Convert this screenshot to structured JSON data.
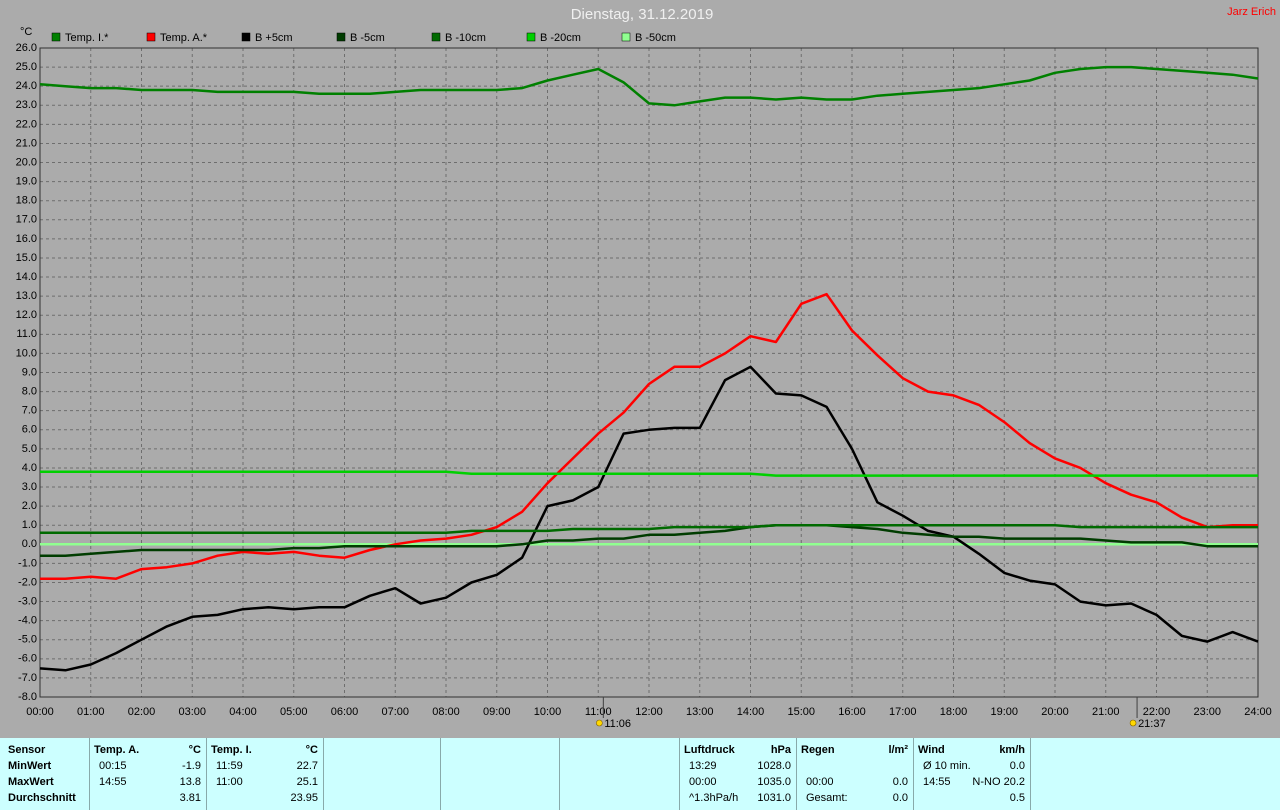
{
  "chart_data": {
    "type": "line",
    "title": "Dienstag, 31.12.2019",
    "owner": "Jarz Erich",
    "y_unit": "°C",
    "x": [
      0,
      0.5,
      1,
      1.5,
      2,
      2.5,
      3,
      3.5,
      4,
      4.5,
      5,
      5.5,
      6,
      6.5,
      7,
      7.5,
      8,
      8.5,
      9,
      9.5,
      10,
      10.5,
      11,
      11.5,
      12,
      12.5,
      13,
      13.5,
      14,
      14.5,
      15,
      15.5,
      16,
      16.5,
      17,
      17.5,
      18,
      18.5,
      19,
      19.5,
      20,
      20.5,
      21,
      21.5,
      22,
      22.5,
      23,
      23.5,
      24
    ],
    "xlim": [
      0,
      24
    ],
    "xticks": [
      {
        "value": 0,
        "label": "00:00"
      },
      {
        "value": 1,
        "label": "01:00"
      },
      {
        "value": 2,
        "label": "02:00"
      },
      {
        "value": 3,
        "label": "03:00"
      },
      {
        "value": 4,
        "label": "04:00"
      },
      {
        "value": 5,
        "label": "05:00"
      },
      {
        "value": 6,
        "label": "06:00"
      },
      {
        "value": 7,
        "label": "07:00"
      },
      {
        "value": 8,
        "label": "08:00"
      },
      {
        "value": 9,
        "label": "09:00"
      },
      {
        "value": 10,
        "label": "10:00"
      },
      {
        "value": 11,
        "label": "11:00"
      },
      {
        "value": 12,
        "label": "12:00"
      },
      {
        "value": 13,
        "label": "13:00"
      },
      {
        "value": 14,
        "label": "14:00"
      },
      {
        "value": 15,
        "label": "15:00"
      },
      {
        "value": 16,
        "label": "16:00"
      },
      {
        "value": 17,
        "label": "17:00"
      },
      {
        "value": 18,
        "label": "18:00"
      },
      {
        "value": 19,
        "label": "19:00"
      },
      {
        "value": 20,
        "label": "20:00"
      },
      {
        "value": 21,
        "label": "21:00"
      },
      {
        "value": 22,
        "label": "22:00"
      },
      {
        "value": 23,
        "label": "23:00"
      },
      {
        "value": 24,
        "label": "24:00"
      }
    ],
    "ylim": [
      -8,
      26
    ],
    "yticks": [
      {
        "value": 26,
        "label": "26.0"
      },
      {
        "value": 25,
        "label": "25.0"
      },
      {
        "value": 24,
        "label": "24.0"
      },
      {
        "value": 23,
        "label": "23.0"
      },
      {
        "value": 22,
        "label": "22.0"
      },
      {
        "value": 21,
        "label": "21.0"
      },
      {
        "value": 20,
        "label": "20.0"
      },
      {
        "value": 19,
        "label": "19.0"
      },
      {
        "value": 18,
        "label": "18.0"
      },
      {
        "value": 17,
        "label": "17.0"
      },
      {
        "value": 16,
        "label": "16.0"
      },
      {
        "value": 15,
        "label": "15.0"
      },
      {
        "value": 14,
        "label": "14.0"
      },
      {
        "value": 13,
        "label": "13.0"
      },
      {
        "value": 12,
        "label": "12.0"
      },
      {
        "value": 11,
        "label": "11.0"
      },
      {
        "value": 10,
        "label": "10.0"
      },
      {
        "value": 9,
        "label": "9.0"
      },
      {
        "value": 8,
        "label": "8.0"
      },
      {
        "value": 7,
        "label": "7.0"
      },
      {
        "value": 6,
        "label": "6.0"
      },
      {
        "value": 5,
        "label": "5.0"
      },
      {
        "value": 4,
        "label": "4.0"
      },
      {
        "value": 3,
        "label": "3.0"
      },
      {
        "value": 2,
        "label": "2.0"
      },
      {
        "value": 1,
        "label": "1.0"
      },
      {
        "value": 0,
        "label": "0.0"
      },
      {
        "value": -1,
        "label": "-1.0"
      },
      {
        "value": -2,
        "label": "-2.0"
      },
      {
        "value": -3,
        "label": "-3.0"
      },
      {
        "value": -4,
        "label": "-4.0"
      },
      {
        "value": -5,
        "label": "-5.0"
      },
      {
        "value": -6,
        "label": "-6.0"
      },
      {
        "value": -7,
        "label": "-7.0"
      },
      {
        "value": -8,
        "label": "-8.0"
      }
    ],
    "grid": true,
    "series": [
      {
        "name": "Temp. I.*",
        "color": "#008000",
        "values": [
          24.1,
          24.0,
          23.9,
          23.9,
          23.8,
          23.8,
          23.8,
          23.7,
          23.7,
          23.7,
          23.7,
          23.6,
          23.6,
          23.6,
          23.7,
          23.8,
          23.8,
          23.8,
          23.8,
          23.9,
          24.3,
          24.6,
          24.9,
          24.2,
          23.1,
          23.0,
          23.2,
          23.4,
          23.4,
          23.3,
          23.4,
          23.3,
          23.3,
          23.5,
          23.6,
          23.7,
          23.8,
          23.9,
          24.1,
          24.3,
          24.7,
          24.9,
          25.0,
          25.0,
          24.9,
          24.8,
          24.7,
          24.6,
          24.4
        ]
      },
      {
        "name": "B -50cm",
        "color": "#90ff90",
        "values": [
          0,
          0,
          0,
          0,
          0,
          0,
          0,
          0,
          0,
          0,
          0,
          0,
          0,
          0,
          0,
          0,
          0,
          0,
          0,
          0,
          0,
          0,
          0,
          0,
          0,
          0,
          0,
          0,
          0,
          0,
          0,
          0,
          0,
          0,
          0,
          0,
          0,
          0,
          0,
          0,
          0,
          0,
          0,
          0,
          0,
          0,
          0,
          0,
          0
        ]
      },
      {
        "name": "Temp. A.*",
        "color": "#ff0000",
        "values": [
          -1.8,
          -1.8,
          -1.7,
          -1.8,
          -1.3,
          -1.2,
          -1.0,
          -0.6,
          -0.4,
          -0.5,
          -0.4,
          -0.6,
          -0.7,
          -0.3,
          0.0,
          0.2,
          0.3,
          0.5,
          0.9,
          1.7,
          3.2,
          4.5,
          5.8,
          6.9,
          8.4,
          9.3,
          9.3,
          10.0,
          10.9,
          10.6,
          12.6,
          13.1,
          11.2,
          9.9,
          8.7,
          8.0,
          7.8,
          7.3,
          6.4,
          5.3,
          4.5,
          4.0,
          3.2,
          2.6,
          2.2,
          1.4,
          0.9,
          1.0,
          1.0
        ]
      },
      {
        "name": "B +5cm",
        "color": "#000000",
        "values": [
          -6.5,
          -6.6,
          -6.3,
          -5.7,
          -5.0,
          -4.3,
          -3.8,
          -3.7,
          -3.4,
          -3.3,
          -3.4,
          -3.3,
          -3.3,
          -2.7,
          -2.3,
          -3.1,
          -2.8,
          -2.0,
          -1.6,
          -0.7,
          2.0,
          2.3,
          3.0,
          5.8,
          6.0,
          6.1,
          6.1,
          8.6,
          9.3,
          7.9,
          7.8,
          7.2,
          5.0,
          2.2,
          1.5,
          0.7,
          0.4,
          -0.5,
          -1.5,
          -1.9,
          -2.1,
          -3.0,
          -3.2,
          -3.1,
          -3.7,
          -4.8,
          -5.1,
          -4.6,
          -5.1
        ]
      },
      {
        "name": "B -5cm",
        "color": "#003c00",
        "values": [
          -0.6,
          -0.6,
          -0.5,
          -0.4,
          -0.3,
          -0.3,
          -0.3,
          -0.3,
          -0.3,
          -0.3,
          -0.2,
          -0.2,
          -0.1,
          -0.1,
          -0.1,
          -0.1,
          -0.1,
          -0.1,
          -0.1,
          0.0,
          0.2,
          0.2,
          0.3,
          0.3,
          0.5,
          0.5,
          0.6,
          0.7,
          0.9,
          1.0,
          1.0,
          1.0,
          0.9,
          0.8,
          0.6,
          0.5,
          0.4,
          0.4,
          0.3,
          0.3,
          0.3,
          0.3,
          0.2,
          0.1,
          0.1,
          0.1,
          -0.1,
          -0.1,
          -0.1
        ]
      },
      {
        "name": "B -10cm",
        "color": "#006a00",
        "values": [
          0.6,
          0.6,
          0.6,
          0.6,
          0.6,
          0.6,
          0.6,
          0.6,
          0.6,
          0.6,
          0.6,
          0.6,
          0.6,
          0.6,
          0.6,
          0.6,
          0.6,
          0.7,
          0.7,
          0.7,
          0.7,
          0.8,
          0.8,
          0.8,
          0.8,
          0.9,
          0.9,
          0.9,
          0.9,
          1.0,
          1.0,
          1.0,
          1.0,
          1.0,
          1.0,
          1.0,
          1.0,
          1.0,
          1.0,
          1.0,
          1.0,
          0.9,
          0.9,
          0.9,
          0.9,
          0.9,
          0.9,
          0.9,
          0.9
        ]
      },
      {
        "name": "B -20cm",
        "color": "#00d000",
        "values": [
          3.8,
          3.8,
          3.8,
          3.8,
          3.8,
          3.8,
          3.8,
          3.8,
          3.8,
          3.8,
          3.8,
          3.8,
          3.8,
          3.8,
          3.8,
          3.8,
          3.8,
          3.7,
          3.7,
          3.7,
          3.7,
          3.7,
          3.7,
          3.7,
          3.7,
          3.7,
          3.7,
          3.7,
          3.7,
          3.6,
          3.6,
          3.6,
          3.6,
          3.6,
          3.6,
          3.6,
          3.6,
          3.6,
          3.6,
          3.6,
          3.6,
          3.6,
          3.6,
          3.6,
          3.6,
          3.6,
          3.6,
          3.6,
          3.6
        ]
      }
    ],
    "legend_order": [
      0,
      2,
      3,
      4,
      5,
      6,
      1
    ],
    "annotations": [
      {
        "x": 11.1,
        "label": "11:06"
      },
      {
        "x": 21.617,
        "label": "21:37"
      }
    ]
  },
  "table": {
    "row_labels": {
      "header": "Sensor",
      "rows": [
        "MinWert",
        "MaxWert",
        "Durchschnitt"
      ]
    },
    "panels": [
      {
        "header": "Temp. A.",
        "unit": "°C",
        "rows": [
          {
            "time": "00:15",
            "value": "-1.9"
          },
          {
            "time": "14:55",
            "value": "13.8"
          },
          {
            "value": "3.81"
          }
        ]
      },
      {
        "header": "Temp. I.",
        "unit": "°C",
        "rows": [
          {
            "time": "11:59",
            "value": "22.7"
          },
          {
            "time": "11:00",
            "value": "25.1"
          },
          {
            "value": "23.95"
          }
        ]
      },
      {
        "header": "Luftdruck",
        "unit": "hPa",
        "rows": [
          {
            "time": "13:29",
            "value": "1028.0"
          },
          {
            "time": "00:00",
            "value": "1035.0"
          },
          {
            "time": "^1.3hPa/h",
            "value": "1031.0"
          }
        ]
      },
      {
        "header": "Regen",
        "unit": "l/m²",
        "rows": [
          null,
          {
            "time": "00:00",
            "value": "0.0"
          },
          {
            "time": "Gesamt:",
            "value": "0.0"
          }
        ]
      },
      {
        "header": "Wind",
        "unit": "km/h",
        "rows": [
          {
            "time": "Ø 10 min.",
            "value": "0.0"
          },
          {
            "time": "14:55",
            "value": "N-NO 20.2"
          },
          {
            "value": "0.5"
          }
        ]
      }
    ]
  }
}
